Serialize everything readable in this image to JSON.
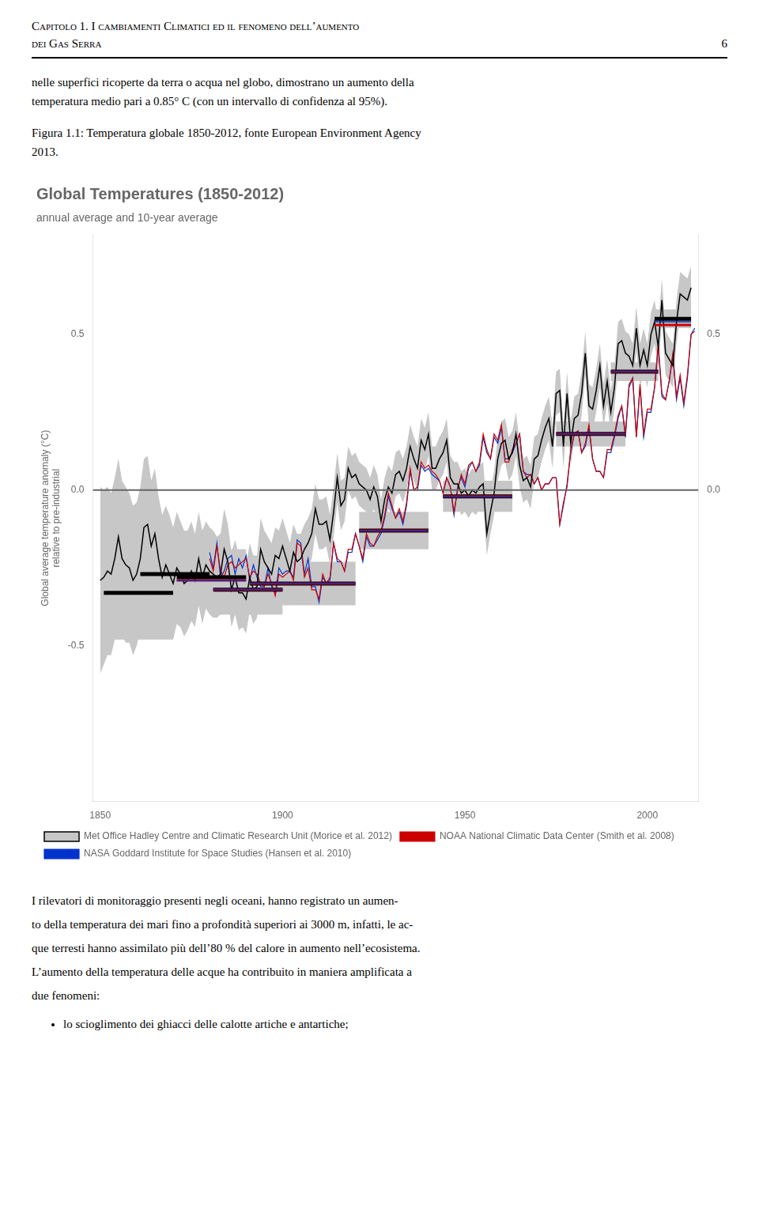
{
  "page": {
    "header": [
      "Capitolo 1.  I cambiamenti Climatici ed il fenomeno dell’aumento",
      "dei Gas Serra"
    ],
    "page_number": "6",
    "paragraph1": [
      "nelle superfici ricoperte da terra o acqua nel globo, dimostrano un aumento della",
      "temperatura medio pari a 0.85° C (con un intervallo di confidenza al 95%)."
    ],
    "caption": [
      "Figura 1.1: Temperatura globale 1850-2012, fonte European Environment Agency",
      "2013."
    ],
    "paragraph2": [
      "I rilevatori di monitoraggio presenti negli oceani, hanno registrato un aumen-",
      "to della temperatura dei mari fino a profondità superiori ai 3000 m, infatti, le ac-",
      "que terresti hanno assimilato più dell’80 % del calore in aumento nell’ecosistema.",
      "L’aumento della temperatura delle acque ha contribuito in maniera amplificata a",
      "due fenomeni:"
    ],
    "bullet": "lo scioglimento dei ghiacci delle calotte artiche e antartiche;"
  },
  "chart_data": {
    "type": "line",
    "title": "Global Temperatures (1850-2012)",
    "subtitle": "annual average and 10-year average",
    "ylabel": "Global average temperature anomaly (°C)\nrelative to pre-industrial",
    "xlim": [
      1848,
      2014
    ],
    "xticks": [
      1850,
      1900,
      1950,
      2000
    ],
    "ylim": [
      -1.0,
      0.82
    ],
    "yticks": [
      -0.5,
      {
        "value": 0,
        "label": "0.0"
      },
      0.5
    ],
    "y2lim": [
      -1.0,
      0.82
    ],
    "y2ticks": [
      {
        "value": 0,
        "label": "0.0"
      },
      0.5
    ],
    "grid": false,
    "legend": "bottom",
    "reference_line": 0,
    "x": [
      1850,
      1851,
      1852,
      1853,
      1854,
      1855,
      1856,
      1857,
      1858,
      1859,
      1860,
      1861,
      1862,
      1863,
      1864,
      1865,
      1866,
      1867,
      1868,
      1869,
      1870,
      1871,
      1872,
      1873,
      1874,
      1875,
      1876,
      1877,
      1878,
      1879,
      1880,
      1881,
      1882,
      1883,
      1884,
      1885,
      1886,
      1887,
      1888,
      1889,
      1890,
      1891,
      1892,
      1893,
      1894,
      1895,
      1896,
      1897,
      1898,
      1899,
      1900,
      1901,
      1902,
      1903,
      1904,
      1905,
      1906,
      1907,
      1908,
      1909,
      1910,
      1911,
      1912,
      1913,
      1914,
      1915,
      1916,
      1917,
      1918,
      1919,
      1920,
      1921,
      1922,
      1923,
      1924,
      1925,
      1926,
      1927,
      1928,
      1929,
      1930,
      1931,
      1932,
      1933,
      1934,
      1935,
      1936,
      1937,
      1938,
      1939,
      1940,
      1941,
      1942,
      1943,
      1944,
      1945,
      1946,
      1947,
      1948,
      1949,
      1950,
      1951,
      1952,
      1953,
      1954,
      1955,
      1956,
      1957,
      1958,
      1959,
      1960,
      1961,
      1962,
      1963,
      1964,
      1965,
      1966,
      1967,
      1968,
      1969,
      1970,
      1971,
      1972,
      1973,
      1974,
      1975,
      1976,
      1977,
      1978,
      1979,
      1980,
      1981,
      1982,
      1983,
      1984,
      1985,
      1986,
      1987,
      1988,
      1989,
      1990,
      1991,
      1992,
      1993,
      1994,
      1995,
      1996,
      1997,
      1998,
      1999,
      2000,
      2001,
      2002,
      2003,
      2004,
      2005,
      2006,
      2007,
      2008,
      2009,
      2010,
      2011,
      2012,
      2013
    ],
    "series": [
      {
        "name": "Met Office Hadley Centre and Climatic Research Unit (Morice et al. 2012)",
        "color": "#000000",
        "values": [
          -0.29,
          -0.28,
          -0.26,
          -0.27,
          -0.22,
          -0.15,
          -0.22,
          -0.24,
          -0.25,
          -0.29,
          -0.27,
          -0.22,
          -0.12,
          -0.11,
          -0.18,
          -0.14,
          -0.22,
          -0.28,
          -0.24,
          -0.27,
          -0.3,
          -0.25,
          -0.27,
          -0.3,
          -0.29,
          -0.26,
          -0.29,
          -0.22,
          -0.28,
          -0.24,
          -0.26,
          -0.27,
          -0.28,
          -0.27,
          -0.19,
          -0.23,
          -0.32,
          -0.28,
          -0.33,
          -0.33,
          -0.35,
          -0.28,
          -0.32,
          -0.31,
          -0.19,
          -0.23,
          -0.25,
          -0.27,
          -0.21,
          -0.22,
          -0.18,
          -0.22,
          -0.26,
          -0.2,
          -0.23,
          -0.22,
          -0.19,
          -0.17,
          -0.14,
          -0.06,
          -0.11,
          -0.11,
          -0.1,
          -0.16,
          -0.07,
          0.04,
          -0.05,
          -0.03,
          0.07,
          0.04,
          0.05,
          0.02,
          0.01,
          0.0,
          -0.03,
          0.01,
          -0.02,
          -0.1,
          -0.03,
          0.01,
          -0.01,
          0.05,
          0.06,
          0.03,
          0.07,
          0.14,
          0.1,
          0.07,
          0.16,
          0.13,
          0.18,
          0.07,
          0.07,
          0.1,
          0.12,
          0.16,
          0.04,
          0.02,
          0.02,
          -0.01,
          0.0,
          -0.02,
          0.0,
          -0.01,
          0.01,
          0.02,
          -0.14,
          -0.07,
          -0.01,
          0.1,
          0.15,
          0.16,
          0.1,
          0.12,
          0.18,
          0.08,
          0.03,
          0.04,
          0.01,
          0.1,
          0.11,
          0.16,
          0.2,
          0.23,
          0.14,
          0.31,
          0.32,
          0.14,
          0.31,
          0.15,
          0.23,
          0.24,
          0.31,
          0.44,
          0.27,
          0.26,
          0.32,
          0.4,
          0.27,
          0.35,
          0.25,
          0.33,
          0.47,
          0.48,
          0.44,
          0.43,
          0.4,
          0.52,
          0.4,
          0.45,
          0.4,
          0.5,
          0.54,
          0.46,
          0.61,
          0.44,
          0.42,
          0.4,
          0.54,
          0.63,
          0.62,
          0.61,
          0.65,
          null
        ],
        "uncertainty": [
          0.3,
          0.28,
          0.27,
          0.26,
          0.26,
          0.25,
          0.25,
          0.25,
          0.24,
          0.24,
          0.23,
          0.23,
          0.22,
          0.22,
          0.21,
          0.21,
          0.2,
          0.2,
          0.19,
          0.19,
          0.18,
          0.18,
          0.17,
          0.17,
          0.16,
          0.16,
          0.15,
          0.15,
          0.15,
          0.14,
          0.14,
          0.14,
          0.13,
          0.13,
          0.13,
          0.12,
          0.12,
          0.12,
          0.12,
          0.11,
          0.11,
          0.11,
          0.11,
          0.1,
          0.1,
          0.1,
          0.1,
          0.1,
          0.09,
          0.09,
          0.09,
          0.09,
          0.09,
          0.09,
          0.09,
          0.08,
          0.08,
          0.08,
          0.08,
          0.08,
          0.08,
          0.08,
          0.08,
          0.08,
          0.08,
          0.08,
          0.08,
          0.07,
          0.07,
          0.07,
          0.07,
          0.07,
          0.07,
          0.07,
          0.07,
          0.07,
          0.07,
          0.07,
          0.07,
          0.07,
          0.07,
          0.07,
          0.07,
          0.07,
          0.07,
          0.07,
          0.07,
          0.07,
          0.07,
          0.07,
          0.07,
          0.07,
          0.07,
          0.07,
          0.07,
          0.07,
          0.07,
          0.07,
          0.07,
          0.07,
          0.07,
          0.07,
          0.07,
          0.07,
          0.07,
          0.07,
          0.07,
          0.07,
          0.07,
          0.07,
          0.07,
          0.07,
          0.07,
          0.07,
          0.07,
          0.07,
          0.07,
          0.07,
          0.07,
          0.07,
          0.07,
          0.07,
          0.07,
          0.07,
          0.07,
          0.07,
          0.07,
          0.07,
          0.07,
          0.07,
          0.07,
          0.07,
          0.07,
          0.07,
          0.07,
          0.07,
          0.07,
          0.07,
          0.07,
          0.07,
          0.07,
          0.07,
          0.07,
          0.07,
          0.07,
          0.07,
          0.07,
          0.07,
          0.07,
          0.07,
          0.07,
          0.07,
          0.07,
          0.07,
          0.07,
          0.07,
          0.07,
          0.07,
          0.07,
          0.07,
          0.07,
          0.07,
          0.07,
          null
        ]
      },
      {
        "name": "NOAA National Climatic Data Center (Smith et al. 2008)",
        "color": "#cc0000",
        "values": [
          null,
          null,
          null,
          null,
          null,
          null,
          null,
          null,
          null,
          null,
          null,
          null,
          null,
          null,
          null,
          null,
          null,
          null,
          null,
          null,
          null,
          null,
          null,
          null,
          null,
          null,
          null,
          null,
          null,
          null,
          -0.22,
          -0.26,
          -0.18,
          -0.26,
          -0.28,
          -0.24,
          -0.23,
          -0.25,
          -0.24,
          -0.23,
          -0.22,
          -0.28,
          -0.26,
          -0.27,
          -0.3,
          -0.31,
          -0.27,
          -0.3,
          -0.34,
          -0.27,
          -0.28,
          -0.27,
          -0.26,
          -0.29,
          -0.17,
          -0.18,
          -0.28,
          -0.25,
          -0.32,
          -0.32,
          -0.35,
          -0.27,
          -0.3,
          -0.28,
          -0.17,
          -0.22,
          -0.23,
          -0.26,
          -0.19,
          -0.19,
          -0.14,
          -0.18,
          -0.22,
          -0.14,
          -0.17,
          -0.18,
          -0.15,
          -0.13,
          -0.08,
          -0.01,
          -0.05,
          -0.09,
          -0.06,
          -0.1,
          -0.04,
          0.07,
          0.0,
          0.01,
          0.09,
          0.07,
          0.08,
          0.06,
          0.05,
          0.03,
          -0.01,
          0.04,
          0.01,
          -0.07,
          0.0,
          0.05,
          0.02,
          0.08,
          0.09,
          0.06,
          0.09,
          0.18,
          0.13,
          0.1,
          0.18,
          0.16,
          0.21,
          0.09,
          0.09,
          0.13,
          0.15,
          0.18,
          0.06,
          0.04,
          0.05,
          0.02,
          0.04,
          0.0,
          0.02,
          0.02,
          0.04,
          0.04,
          -0.11,
          -0.04,
          0.01,
          0.13,
          0.18,
          0.19,
          0.12,
          0.15,
          0.21,
          0.1,
          0.06,
          0.06,
          0.04,
          0.13,
          0.13,
          0.18,
          0.24,
          0.27,
          0.18,
          0.34,
          0.36,
          0.17,
          0.34,
          0.18,
          0.26,
          0.26,
          0.33,
          0.47,
          0.31,
          0.29,
          0.35,
          0.44,
          0.3,
          0.37,
          0.28,
          0.37,
          0.5,
          0.51
        ]
      },
      {
        "name": "NASA Goddard Institute for Space Studies (Hansen et al. 2010)",
        "color": "#0033cc",
        "values": [
          null,
          null,
          null,
          null,
          null,
          null,
          null,
          null,
          null,
          null,
          null,
          null,
          null,
          null,
          null,
          null,
          null,
          null,
          null,
          null,
          null,
          null,
          null,
          null,
          null,
          null,
          null,
          null,
          null,
          null,
          -0.2,
          -0.25,
          -0.17,
          -0.28,
          -0.26,
          -0.22,
          -0.21,
          -0.27,
          -0.22,
          -0.25,
          -0.21,
          -0.29,
          -0.24,
          -0.28,
          -0.31,
          -0.31,
          -0.25,
          -0.31,
          -0.33,
          -0.25,
          -0.27,
          -0.26,
          -0.26,
          -0.28,
          -0.16,
          -0.17,
          -0.27,
          -0.22,
          -0.31,
          -0.31,
          -0.36,
          -0.28,
          -0.3,
          -0.29,
          -0.17,
          -0.23,
          -0.23,
          -0.26,
          -0.2,
          -0.2,
          -0.14,
          -0.18,
          -0.23,
          -0.15,
          -0.18,
          -0.18,
          -0.16,
          -0.14,
          -0.09,
          -0.02,
          -0.06,
          -0.09,
          -0.07,
          -0.11,
          -0.05,
          0.06,
          0.0,
          0.0,
          0.08,
          0.06,
          0.07,
          0.05,
          0.04,
          0.03,
          -0.01,
          0.04,
          0.01,
          -0.08,
          0.01,
          0.04,
          0.01,
          0.07,
          0.09,
          0.06,
          0.08,
          0.17,
          0.12,
          0.1,
          0.17,
          0.15,
          0.2,
          0.1,
          0.1,
          0.12,
          0.15,
          0.18,
          0.06,
          0.05,
          0.05,
          0.02,
          0.04,
          0.0,
          0.02,
          0.02,
          0.04,
          0.04,
          -0.11,
          -0.05,
          0.02,
          0.12,
          0.18,
          0.19,
          0.12,
          0.14,
          0.2,
          0.1,
          0.06,
          0.06,
          0.04,
          0.12,
          0.12,
          0.17,
          0.23,
          0.27,
          0.17,
          0.33,
          0.36,
          0.17,
          0.33,
          0.17,
          0.25,
          0.25,
          0.33,
          0.46,
          0.3,
          0.29,
          0.35,
          0.43,
          0.29,
          0.36,
          0.27,
          0.36,
          0.5,
          0.52
        ]
      }
    ],
    "decade_means": [
      {
        "x0": 1851,
        "x1": 1870,
        "values": [
          -0.33,
          null,
          null
        ],
        "uncertainty": 0.15
      },
      {
        "x0": 1861,
        "x1": 1880,
        "values": [
          -0.27,
          null,
          null
        ],
        "uncertainty": 0.1
      },
      {
        "x0": 1871,
        "x1": 1890,
        "values": [
          -0.28,
          -0.29,
          -0.29
        ],
        "uncertainty": 0.09
      },
      {
        "x0": 1881,
        "x1": 1900,
        "values": [
          -0.32,
          -0.32,
          -0.32
        ],
        "uncertainty": 0.08
      },
      {
        "x0": 1891,
        "x1": 1920,
        "values": [
          -0.3,
          -0.3,
          -0.3
        ],
        "uncertainty": 0.07
      },
      {
        "x0": 1921,
        "x1": 1940,
        "values": [
          -0.13,
          -0.13,
          -0.13
        ],
        "uncertainty": 0.06
      },
      {
        "x0": 1944,
        "x1": 1963,
        "values": [
          -0.02,
          -0.02,
          -0.02
        ],
        "uncertainty": 0.05
      },
      {
        "x0": 1975,
        "x1": 1994,
        "values": [
          0.18,
          0.18,
          0.18
        ],
        "uncertainty": 0.04
      },
      {
        "x0": 1990,
        "x1": 2003,
        "values": [
          0.38,
          0.38,
          0.38
        ],
        "uncertainty": 0.03
      },
      {
        "x0": 2002,
        "x1": 2012,
        "values": [
          0.55,
          0.53,
          0.54
        ],
        "uncertainty": 0.03
      }
    ]
  }
}
